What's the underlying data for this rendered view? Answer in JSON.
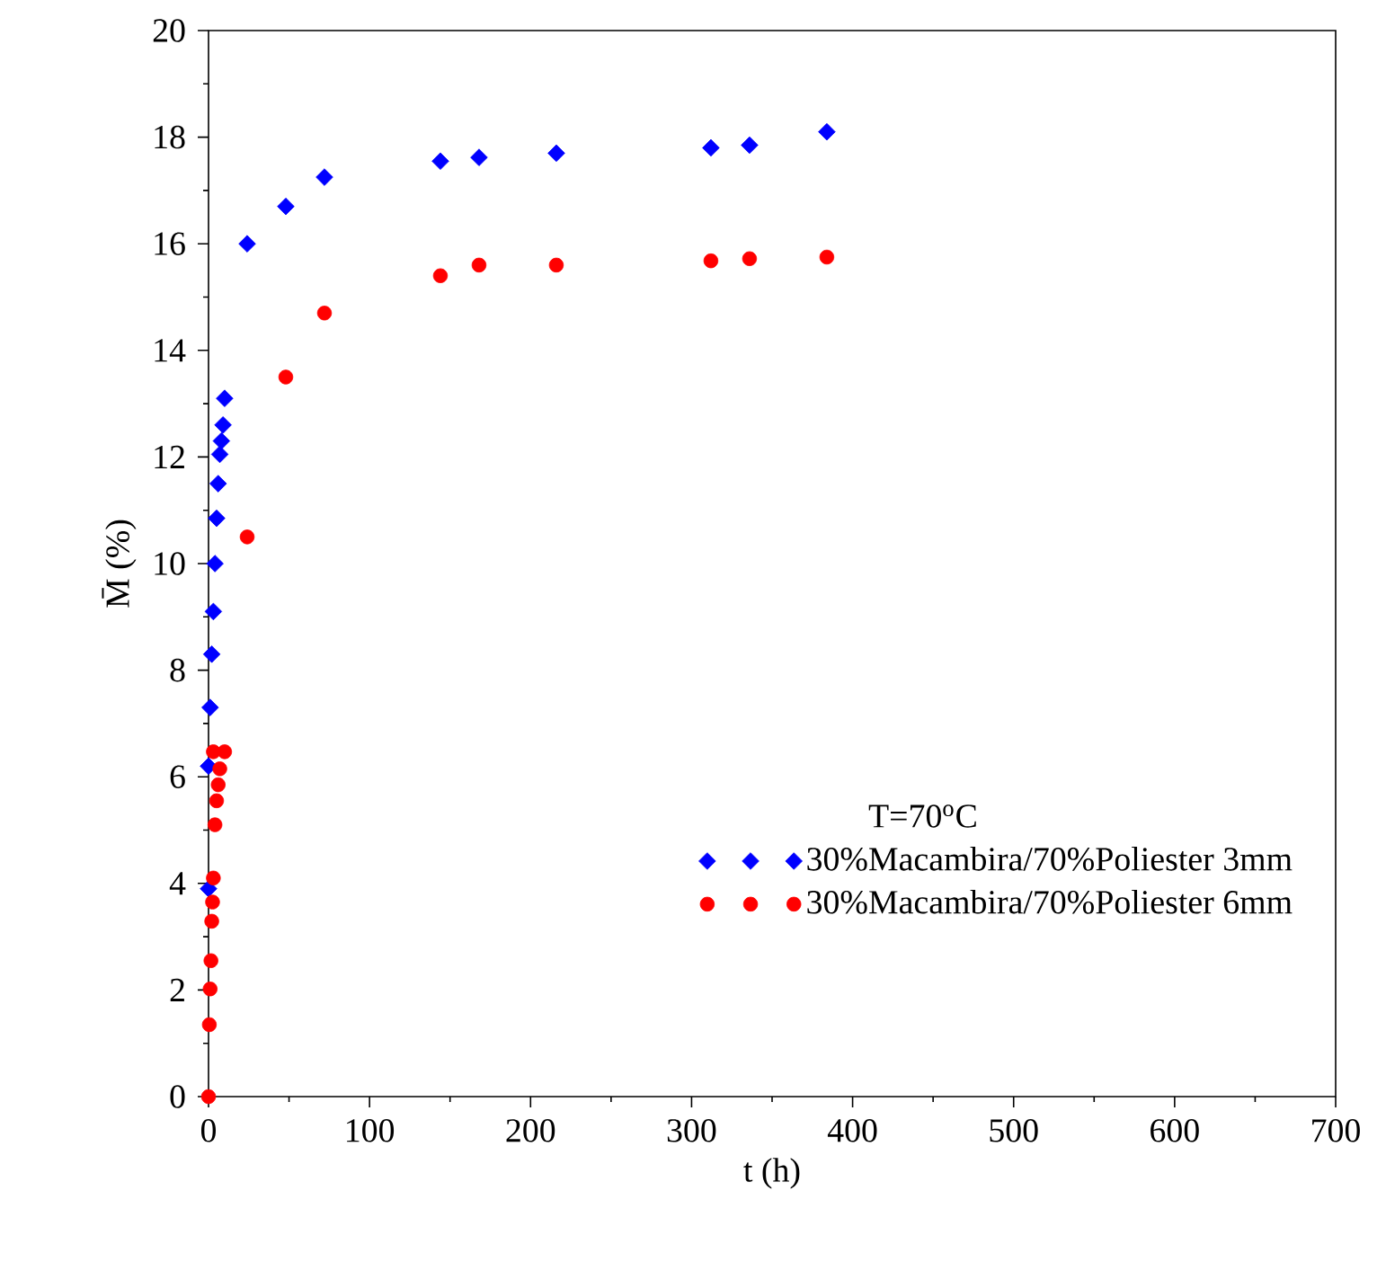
{
  "chart_data": {
    "type": "scatter",
    "xlabel": "t (h)",
    "ylabel": "M̄ (%)",
    "legend_title": "T=70$^{o}$C",
    "xlim": [
      0,
      700
    ],
    "xticks": [
      0,
      100,
      200,
      300,
      400,
      500,
      600,
      700
    ],
    "ylim": [
      0,
      20
    ],
    "yticks": [
      0,
      2,
      4,
      6,
      8,
      10,
      12,
      14,
      16,
      18,
      20
    ],
    "grid": false,
    "legend": "bottom right",
    "series": [
      {
        "name": "30%Macambira/70%Poliester 3mm",
        "color": "#0000ff",
        "marker": "diamond",
        "x": [
          0,
          0,
          1,
          2,
          3,
          4,
          5,
          6,
          7,
          8,
          9,
          10,
          24,
          48,
          72,
          144,
          168,
          216,
          312,
          336,
          384
        ],
        "values": [
          3.9,
          6.2,
          7.3,
          8.3,
          9.1,
          10.0,
          10.85,
          11.5,
          12.05,
          12.3,
          12.6,
          13.1,
          16.0,
          16.7,
          17.25,
          17.55,
          17.62,
          17.7,
          17.8,
          17.85,
          18.1
        ]
      },
      {
        "name": "30%Macambira/70%Poliester 6mm",
        "color": "#ff0000",
        "marker": "circle",
        "x": [
          0,
          0.5,
          1,
          1.5,
          2,
          2.5,
          3,
          4,
          5,
          6,
          7,
          3,
          10,
          24,
          48,
          72,
          144,
          168,
          216,
          312,
          336,
          384
        ],
        "values": [
          0,
          1.35,
          2.02,
          2.55,
          3.29,
          3.65,
          4.1,
          5.1,
          5.55,
          5.85,
          6.15,
          6.47,
          6.47,
          10.5,
          13.5,
          14.7,
          15.4,
          15.6,
          15.6,
          15.68,
          15.72,
          15.75
        ]
      }
    ]
  }
}
